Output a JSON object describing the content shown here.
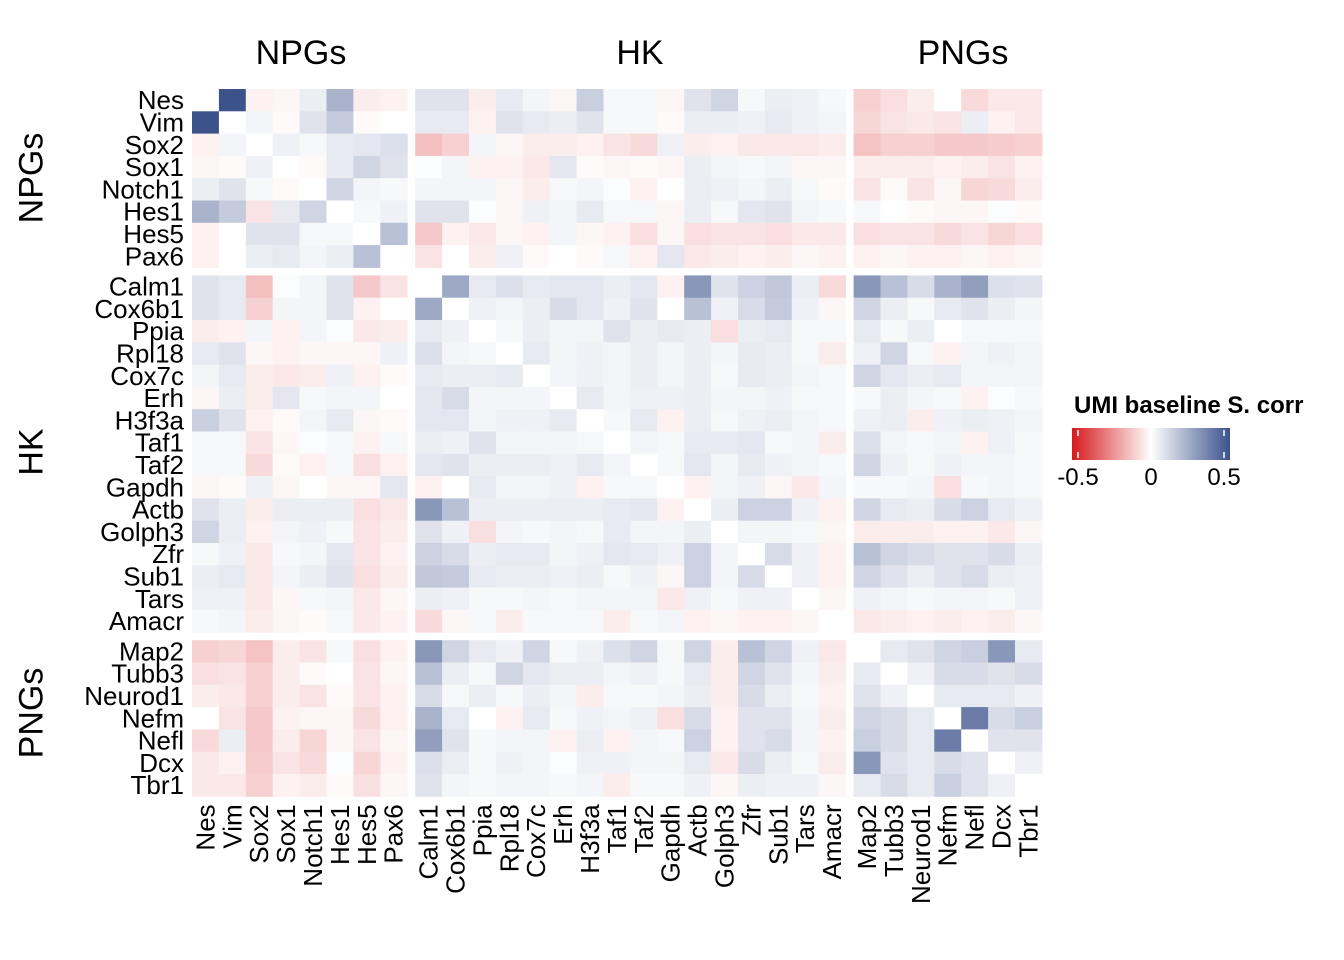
{
  "chart_data": {
    "type": "heatmap",
    "column_groups": [
      "NPGs",
      "HK",
      "PNGs"
    ],
    "row_groups": [
      "NPGs",
      "HK",
      "PNGs"
    ],
    "group_members": {
      "NPGs": [
        "Nes",
        "Vim",
        "Sox2",
        "Sox1",
        "Notch1",
        "Hes1",
        "Hes5",
        "Pax6"
      ],
      "HK": [
        "Calm1",
        "Cox6b1",
        "Ppia",
        "Rpl18",
        "Cox7c",
        "Erh",
        "H3f3a",
        "Taf1",
        "Taf2",
        "Gapdh",
        "Actb",
        "Golph3",
        "Zfr",
        "Sub1",
        "Tars",
        "Amacr"
      ],
      "PNGs": [
        "Map2",
        "Tubb3",
        "Neurod1",
        "Nefm",
        "Nefl",
        "Dcx",
        "Tbr1"
      ]
    },
    "genes": [
      "Nes",
      "Vim",
      "Sox2",
      "Sox1",
      "Notch1",
      "Hes1",
      "Hes5",
      "Pax6",
      "Calm1",
      "Cox6b1",
      "Ppia",
      "Rpl18",
      "Cox7c",
      "Erh",
      "H3f3a",
      "Taf1",
      "Taf2",
      "Gapdh",
      "Actb",
      "Golph3",
      "Zfr",
      "Sub1",
      "Tars",
      "Amacr",
      "Map2",
      "Tubb3",
      "Neurod1",
      "Nefm",
      "Nefl",
      "Dcx",
      "Tbr1"
    ],
    "values": [
      [
        0,
        0.55,
        -0.03,
        -0.02,
        0.05,
        0.22,
        -0.04,
        -0.03,
        0.08,
        0.08,
        -0.04,
        0.06,
        0.03,
        -0.02,
        0.14,
        0.02,
        0.02,
        -0.02,
        0.08,
        0.12,
        0.02,
        0.05,
        0.04,
        0.02,
        -0.1,
        -0.07,
        -0.04,
        0,
        -0.08,
        -0.05,
        -0.05
      ],
      [
        0.55,
        0,
        0.03,
        -0.01,
        0.08,
        0.15,
        -0.01,
        0,
        0.06,
        0.06,
        -0.03,
        0.08,
        0.06,
        0.05,
        0.08,
        0.02,
        0.02,
        -0.01,
        0.05,
        0.05,
        0.04,
        0.06,
        0.04,
        0.03,
        -0.09,
        -0.06,
        -0.05,
        -0.06,
        0.05,
        -0.03,
        -0.05
      ],
      [
        -0.03,
        0.03,
        0,
        0.04,
        0.02,
        0.06,
        0.07,
        0.09,
        -0.14,
        -0.1,
        0.03,
        -0.02,
        -0.04,
        -0.04,
        -0.03,
        -0.06,
        -0.08,
        0.04,
        -0.04,
        -0.03,
        -0.05,
        -0.05,
        -0.05,
        -0.04,
        -0.13,
        -0.1,
        -0.1,
        -0.12,
        -0.12,
        -0.11,
        -0.1
      ],
      [
        -0.02,
        -0.01,
        0.04,
        0,
        -0.01,
        0.06,
        0.12,
        0.08,
        0.01,
        0.03,
        -0.03,
        -0.03,
        -0.05,
        0.07,
        -0.01,
        -0.02,
        -0.01,
        -0.02,
        0.05,
        0.03,
        0.02,
        0.03,
        -0.02,
        -0.02,
        -0.04,
        -0.04,
        -0.04,
        -0.03,
        -0.04,
        -0.06,
        -0.03
      ],
      [
        0.05,
        0.08,
        0.02,
        -0.01,
        0,
        0.12,
        0.03,
        0.02,
        0.03,
        0.03,
        0.03,
        -0.02,
        -0.04,
        0.02,
        0.03,
        0.01,
        -0.03,
        0,
        0.05,
        0.04,
        0.03,
        0.05,
        0.02,
        -0.01,
        -0.06,
        -0.01,
        -0.06,
        -0.02,
        -0.09,
        -0.08,
        -0.04
      ],
      [
        0.22,
        0.15,
        -0.06,
        0.06,
        0.12,
        0,
        0.02,
        0.04,
        0.08,
        0.08,
        0.01,
        -0.02,
        0.04,
        0.03,
        0.06,
        0.02,
        0.02,
        -0.02,
        0.05,
        0.02,
        0.07,
        0.08,
        0.03,
        0.02,
        0.02,
        0,
        -0.01,
        -0.02,
        -0.02,
        0.01,
        -0.01
      ],
      [
        -0.03,
        0,
        0.08,
        0.08,
        0.02,
        0.02,
        0,
        0.18,
        -0.12,
        -0.03,
        -0.05,
        -0.02,
        -0.03,
        0.03,
        -0.02,
        -0.03,
        -0.07,
        -0.02,
        -0.07,
        -0.06,
        -0.06,
        -0.07,
        -0.05,
        -0.05,
        -0.07,
        -0.06,
        -0.06,
        -0.08,
        -0.06,
        -0.09,
        -0.07
      ],
      [
        -0.03,
        0,
        0.05,
        0.06,
        0.03,
        0.05,
        0.18,
        0,
        -0.06,
        0,
        -0.04,
        0.04,
        -0.01,
        0,
        -0.01,
        0.02,
        -0.03,
        0.07,
        -0.05,
        -0.04,
        -0.03,
        -0.04,
        -0.02,
        -0.03,
        -0.03,
        -0.02,
        -0.03,
        -0.03,
        -0.02,
        -0.03,
        -0.02
      ],
      [
        0.08,
        0.06,
        -0.14,
        0.01,
        0.03,
        0.08,
        -0.12,
        -0.06,
        0,
        0.25,
        0.06,
        0.09,
        0.06,
        0.07,
        0.07,
        0.05,
        0.07,
        -0.03,
        0.3,
        0.08,
        0.13,
        0.16,
        0.05,
        -0.08,
        0.3,
        0.18,
        0.1,
        0.22,
        0.28,
        0.09,
        0.08
      ],
      [
        0.08,
        0.06,
        -0.1,
        0.03,
        0.03,
        0.08,
        -0.03,
        0,
        0.25,
        0,
        0.04,
        0.03,
        0.05,
        0.1,
        0.07,
        0.04,
        0.08,
        0,
        0.18,
        0.04,
        0.1,
        0.15,
        0.04,
        -0.02,
        0.12,
        0.05,
        0.02,
        0.06,
        0.08,
        0.05,
        0.03
      ],
      [
        -0.04,
        -0.03,
        0.03,
        -0.03,
        0.03,
        0.01,
        -0.05,
        -0.04,
        0.06,
        0.04,
        0,
        0.02,
        0.05,
        0.03,
        0.03,
        0.08,
        0.05,
        0.06,
        0.05,
        -0.07,
        0.05,
        0.06,
        0.02,
        0.02,
        0.06,
        0.02,
        0.05,
        0,
        0.02,
        0.02,
        0.02
      ],
      [
        0.06,
        0.08,
        -0.02,
        -0.03,
        -0.02,
        -0.02,
        -0.02,
        0.04,
        0.09,
        0.03,
        0.02,
        0,
        0.06,
        0.03,
        0.04,
        0.03,
        0.05,
        0.03,
        0.05,
        0.03,
        0.06,
        0.05,
        0.02,
        -0.04,
        0.04,
        0.12,
        0.02,
        -0.03,
        0.03,
        0.04,
        0.03
      ],
      [
        0.03,
        0.06,
        -0.04,
        -0.05,
        -0.04,
        0.04,
        -0.03,
        -0.01,
        0.06,
        0.05,
        0.05,
        0.06,
        0,
        0.03,
        0.04,
        0.03,
        0.05,
        0.03,
        0.05,
        0.02,
        0.06,
        0.05,
        0.03,
        0.02,
        0.12,
        0.07,
        0.05,
        0.06,
        0.03,
        0.03,
        0.03
      ],
      [
        -0.02,
        0.05,
        -0.04,
        0.07,
        0.02,
        0.03,
        0.03,
        0,
        0.07,
        0.1,
        0.03,
        0.03,
        0.03,
        0,
        0.06,
        0.03,
        0.04,
        0.04,
        0.05,
        0.03,
        0.03,
        0.04,
        0.02,
        0.02,
        0.02,
        0.05,
        0.03,
        0.02,
        -0.03,
        0.01,
        0.02
      ],
      [
        0.14,
        0.08,
        -0.03,
        -0.01,
        0.03,
        0.06,
        -0.02,
        -0.01,
        0.07,
        0.07,
        0.03,
        0.04,
        0.04,
        0.06,
        0,
        0.02,
        0.06,
        -0.03,
        0.05,
        0.02,
        0.04,
        0.05,
        0.03,
        0.02,
        0.04,
        0.05,
        -0.04,
        0.04,
        0.05,
        0.04,
        0.03
      ],
      [
        0.02,
        0.02,
        -0.06,
        -0.02,
        0.01,
        0.02,
        -0.03,
        0.02,
        0.05,
        0.04,
        0.08,
        0.03,
        0.03,
        0.03,
        0.02,
        0,
        0.03,
        0.02,
        0.06,
        0.06,
        0.07,
        0.02,
        0.03,
        -0.04,
        0.09,
        0.03,
        0.02,
        0.03,
        -0.03,
        0.04,
        0.02
      ],
      [
        0.02,
        0.02,
        -0.08,
        -0.01,
        -0.03,
        0.02,
        -0.07,
        -0.03,
        0.07,
        0.08,
        0.05,
        0.05,
        0.05,
        0.04,
        0.06,
        0.03,
        0,
        0.02,
        0.07,
        0.03,
        0.06,
        0.04,
        0.03,
        0.02,
        0.12,
        0.04,
        0.02,
        0.04,
        0.03,
        0.03,
        0.02
      ],
      [
        -0.02,
        -0.01,
        0.04,
        -0.02,
        0,
        -0.02,
        -0.02,
        0.07,
        -0.03,
        0,
        0.06,
        0.03,
        0.03,
        0.04,
        -0.03,
        0.02,
        0.02,
        0,
        -0.03,
        0.03,
        0.04,
        -0.02,
        -0.05,
        0.03,
        0.02,
        0.02,
        0.03,
        -0.07,
        0.02,
        0.03,
        0.02
      ],
      [
        0.08,
        0.05,
        -0.04,
        0.05,
        0.05,
        0.05,
        -0.07,
        -0.05,
        0.3,
        0.18,
        0.05,
        0.05,
        0.05,
        0.05,
        0.05,
        0.06,
        0.07,
        -0.03,
        0,
        0.05,
        0.13,
        0.13,
        0.04,
        -0.03,
        0.12,
        0.06,
        0.05,
        0.1,
        0.13,
        0.06,
        0.04
      ],
      [
        0.12,
        0.05,
        -0.03,
        0.03,
        0.04,
        0.02,
        -0.06,
        -0.04,
        0.08,
        0.04,
        -0.07,
        0.03,
        0.02,
        0.03,
        0.02,
        0.06,
        0.03,
        0.03,
        0.05,
        0,
        0.03,
        0.03,
        0.02,
        -0.02,
        -0.04,
        -0.04,
        -0.04,
        -0.03,
        -0.03,
        -0.05,
        -0.02
      ],
      [
        0.02,
        0.04,
        -0.05,
        0.02,
        0.03,
        0.07,
        -0.06,
        -0.03,
        0.13,
        0.1,
        0.05,
        0.06,
        0.06,
        0.03,
        0.04,
        0.07,
        0.06,
        0.04,
        0.13,
        0.03,
        0,
        0.1,
        0.04,
        -0.03,
        0.18,
        0.12,
        0.1,
        0.08,
        0.08,
        0.1,
        0.05
      ],
      [
        0.05,
        0.06,
        -0.05,
        0.03,
        0.05,
        0.08,
        -0.07,
        -0.04,
        0.16,
        0.15,
        0.06,
        0.05,
        0.05,
        0.04,
        0.05,
        0.02,
        0.04,
        -0.02,
        0.13,
        0.03,
        0.1,
        0,
        0.04,
        -0.03,
        0.12,
        0.08,
        0.05,
        0.08,
        0.1,
        0.05,
        0.04
      ],
      [
        0.04,
        0.04,
        -0.05,
        -0.02,
        0.02,
        0.03,
        -0.05,
        -0.02,
        0.05,
        0.04,
        0.02,
        0.02,
        0.03,
        0.02,
        0.03,
        0.03,
        0.03,
        -0.05,
        0.04,
        0.02,
        0.04,
        0.04,
        0,
        -0.02,
        0.04,
        0.03,
        0.02,
        0.03,
        0.03,
        0.02,
        0.04
      ],
      [
        0.02,
        0.03,
        -0.04,
        -0.02,
        -0.01,
        0.02,
        -0.05,
        -0.03,
        -0.08,
        -0.02,
        0.02,
        -0.04,
        0.02,
        0.02,
        0.02,
        -0.04,
        0.02,
        0.03,
        -0.03,
        -0.02,
        -0.03,
        -0.03,
        -0.02,
        0,
        -0.05,
        -0.04,
        -0.03,
        -0.04,
        -0.03,
        -0.04,
        -0.02
      ],
      [
        -0.1,
        -0.09,
        -0.13,
        -0.04,
        -0.06,
        0.02,
        -0.07,
        -0.03,
        0.3,
        0.12,
        0.06,
        0.04,
        0.12,
        0.02,
        0.04,
        0.09,
        0.12,
        0.02,
        0.12,
        -0.04,
        0.18,
        0.12,
        0.04,
        -0.05,
        0,
        0.06,
        0.08,
        0.12,
        0.14,
        0.3,
        0.06
      ],
      [
        -0.07,
        -0.06,
        -0.1,
        -0.04,
        -0.01,
        0,
        -0.06,
        -0.02,
        0.18,
        0.05,
        0.02,
        0.12,
        0.07,
        0.05,
        0.05,
        0.03,
        0.04,
        0.02,
        0.06,
        -0.04,
        0.12,
        0.08,
        0.03,
        -0.04,
        0.06,
        0,
        0.04,
        0.1,
        0.1,
        0.08,
        0.1
      ],
      [
        -0.04,
        -0.05,
        -0.1,
        -0.04,
        -0.06,
        -0.01,
        -0.06,
        -0.03,
        0.1,
        0.02,
        0.05,
        0.02,
        0.05,
        0.03,
        -0.04,
        0.02,
        0.02,
        0.03,
        0.05,
        -0.04,
        0.1,
        0.05,
        0.02,
        -0.03,
        0.08,
        0.04,
        0,
        0.06,
        0.06,
        0.06,
        0.04
      ],
      [
        0,
        -0.06,
        -0.12,
        -0.03,
        -0.02,
        -0.02,
        -0.08,
        -0.03,
        0.22,
        0.06,
        0,
        -0.03,
        0.06,
        0.02,
        0.04,
        0.03,
        0.04,
        -0.07,
        0.1,
        -0.03,
        0.08,
        0.08,
        0.03,
        -0.04,
        0.12,
        0.1,
        0.06,
        0,
        0.38,
        0.1,
        0.14
      ],
      [
        -0.08,
        0.05,
        -0.12,
        -0.04,
        -0.09,
        -0.02,
        -0.06,
        -0.02,
        0.28,
        0.08,
        0.02,
        0.03,
        0.03,
        -0.03,
        0.05,
        -0.03,
        0.03,
        0.02,
        0.13,
        -0.03,
        0.08,
        0.1,
        0.03,
        -0.03,
        0.14,
        0.1,
        0.06,
        0.38,
        0,
        0.08,
        0.08
      ],
      [
        -0.05,
        -0.03,
        -0.11,
        -0.06,
        -0.08,
        0.01,
        -0.09,
        -0.03,
        0.09,
        0.05,
        0.02,
        0.04,
        0.03,
        0.01,
        0.04,
        0.04,
        0.03,
        0.03,
        0.06,
        -0.05,
        0.1,
        0.05,
        0.02,
        -0.04,
        0.3,
        0.08,
        0.06,
        0.1,
        0.08,
        0,
        0.04
      ],
      [
        -0.05,
        -0.05,
        -0.1,
        -0.03,
        -0.04,
        -0.01,
        -0.07,
        -0.02,
        0.08,
        0.03,
        0.02,
        0.03,
        0.03,
        0.02,
        0.03,
        -0.04,
        0.02,
        0.02,
        0.04,
        -0.02,
        0.05,
        0.04,
        0.04,
        -0.02,
        0.06,
        0.1,
        0.06,
        0.14,
        0.08,
        0.04,
        0
      ]
    ],
    "legend": {
      "title": "UMI baseline S. corr",
      "min": -0.5,
      "max": 0.5,
      "ticks": [
        "-0.5",
        "0",
        "0.5"
      ],
      "colors": {
        "low": "#d7191c",
        "mid": "#ffffff",
        "high": "#3b528b"
      }
    }
  }
}
